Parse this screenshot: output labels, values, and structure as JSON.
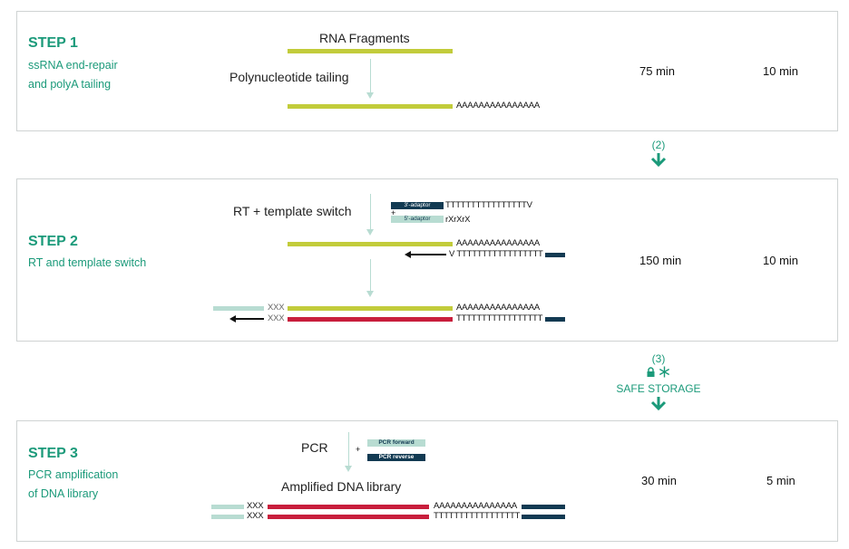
{
  "colors": {
    "teal": "#1b9a7a",
    "rna_green": "#c2cc3b",
    "red": "#c81e3c",
    "mint": "#b8dcd2",
    "navy": "#123a52"
  },
  "step1": {
    "title": "STEP 1",
    "desc_line1": "ssRNA end-repair",
    "desc_line2": "and polyA tailing",
    "fragments_label": "RNA Fragments",
    "process_label": "Polynucleotide tailing",
    "polyA": "AAAAAAAAAAAAAAA",
    "time1": "75 min",
    "time2": "10 min"
  },
  "between12": {
    "label": "(2)",
    "icon": "down-arrow-icon"
  },
  "step2": {
    "title": "STEP 2",
    "desc": "RT and template switch",
    "process_label": "RT + template switch",
    "plus": "+",
    "adaptor3_label": "3'-adaptor",
    "adaptor3_seq": "TTTTTTTTTTTTTTTTV",
    "adaptor5_label": "5'-adaptor",
    "adaptor5_seq": "rXrXrX",
    "polyA": "AAAAAAAAAAAAAAA",
    "polyT_rt": "V TTTTTTTTTTTTTTTTT",
    "xxx1": "XXX",
    "xxx2": "XXX",
    "polyA_2": "AAAAAAAAAAAAAAA",
    "polyT_2": "TTTTTTTTTTTTTTTTT",
    "time1": "150 min",
    "time2": "10 min"
  },
  "between23": {
    "label": "(3)",
    "storage": "SAFE STORAGE",
    "icons": [
      "lock-icon",
      "snowflake-icon",
      "down-arrow-icon"
    ]
  },
  "step3": {
    "title": "STEP 3",
    "desc_line1": "PCR amplification",
    "desc_line2": "of DNA library",
    "process_label": "PCR",
    "plus": "+",
    "pcr_forward": "PCR forward",
    "pcr_reverse": "PCR reverse",
    "library_label": "Amplified DNA library",
    "xxx1": "XXX",
    "xxx2": "XXX",
    "polyA": "AAAAAAAAAAAAAAA",
    "polyT": "TTTTTTTTTTTTTTTTT",
    "time1": "30 min",
    "time2": "5 min"
  }
}
